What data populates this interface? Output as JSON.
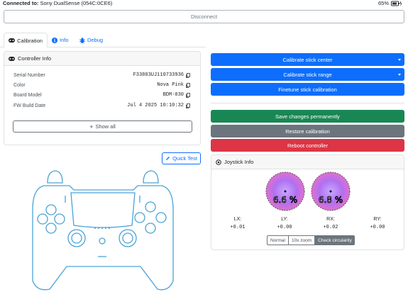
{
  "header": {
    "connected_label": "Connected to:",
    "device": "Sony DualSense (054C:0CE6)",
    "battery": "65%",
    "disconnect": "Disconnect"
  },
  "tabs": [
    "Calibration",
    "Info",
    "Debug"
  ],
  "controller_info": {
    "title": "Controller Info",
    "rows": [
      [
        "Serial Number",
        "F33803UJ110733936"
      ],
      [
        "Color",
        "Nova Pink"
      ],
      [
        "Board Model",
        "BDM-030"
      ],
      [
        "FW Build Date",
        "Jul 4 2025 10:10:32"
      ]
    ],
    "show_all": "Show all"
  },
  "quick_test": "Quick Test",
  "actions": [
    "Calibrate stick center",
    "Calibrate stick range",
    "Finetune stick calibration",
    "Save changes permanently",
    "Restore calibration",
    "Reboot controller"
  ],
  "joystick_info": {
    "title": "Joystick Info",
    "left_error": "6.6 %",
    "right_error": "6.8 %",
    "readings": [
      {
        "label": "LX:",
        "value": "+0.01"
      },
      {
        "label": "LY:",
        "value": "+0.00"
      },
      {
        "label": "RX:",
        "value": "+0.02"
      },
      {
        "label": "RY:",
        "value": "+0.00"
      }
    ],
    "modes": [
      "Normal",
      "10x zoom",
      "Check circularity"
    ]
  }
}
